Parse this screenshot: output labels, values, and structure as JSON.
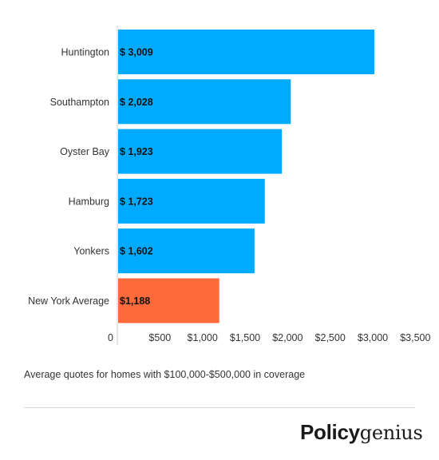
{
  "chart_data": {
    "type": "bar",
    "orientation": "horizontal",
    "categories": [
      "Huntington",
      "Southampton",
      "Oyster Bay",
      "Hamburg",
      "Yonkers",
      "New York Average"
    ],
    "values": [
      3009,
      2028,
      1923,
      1723,
      1602,
      1188
    ],
    "data_labels": [
      "$ 3,009",
      "$ 2,028",
      "$ 1,923",
      "$ 1,723",
      "$ 1,602",
      "$1,188"
    ],
    "colors": [
      "#00aaff",
      "#00aaff",
      "#00aaff",
      "#00aaff",
      "#00aaff",
      "#ff6a3d"
    ],
    "xlim": [
      0,
      3500
    ],
    "xticks": [
      0,
      500,
      1000,
      1500,
      2000,
      2500,
      3000,
      3500
    ],
    "xtick_labels": [
      "0",
      "$500",
      "$1,000",
      "$1,500",
      "$2,000",
      "$2,500",
      "$3,000",
      "$3,500"
    ],
    "grid": false
  },
  "caption": "Average quotes for homes with $100,000-$500,000 in coverage",
  "brand": {
    "part1": "Policy",
    "part2": "genius"
  }
}
